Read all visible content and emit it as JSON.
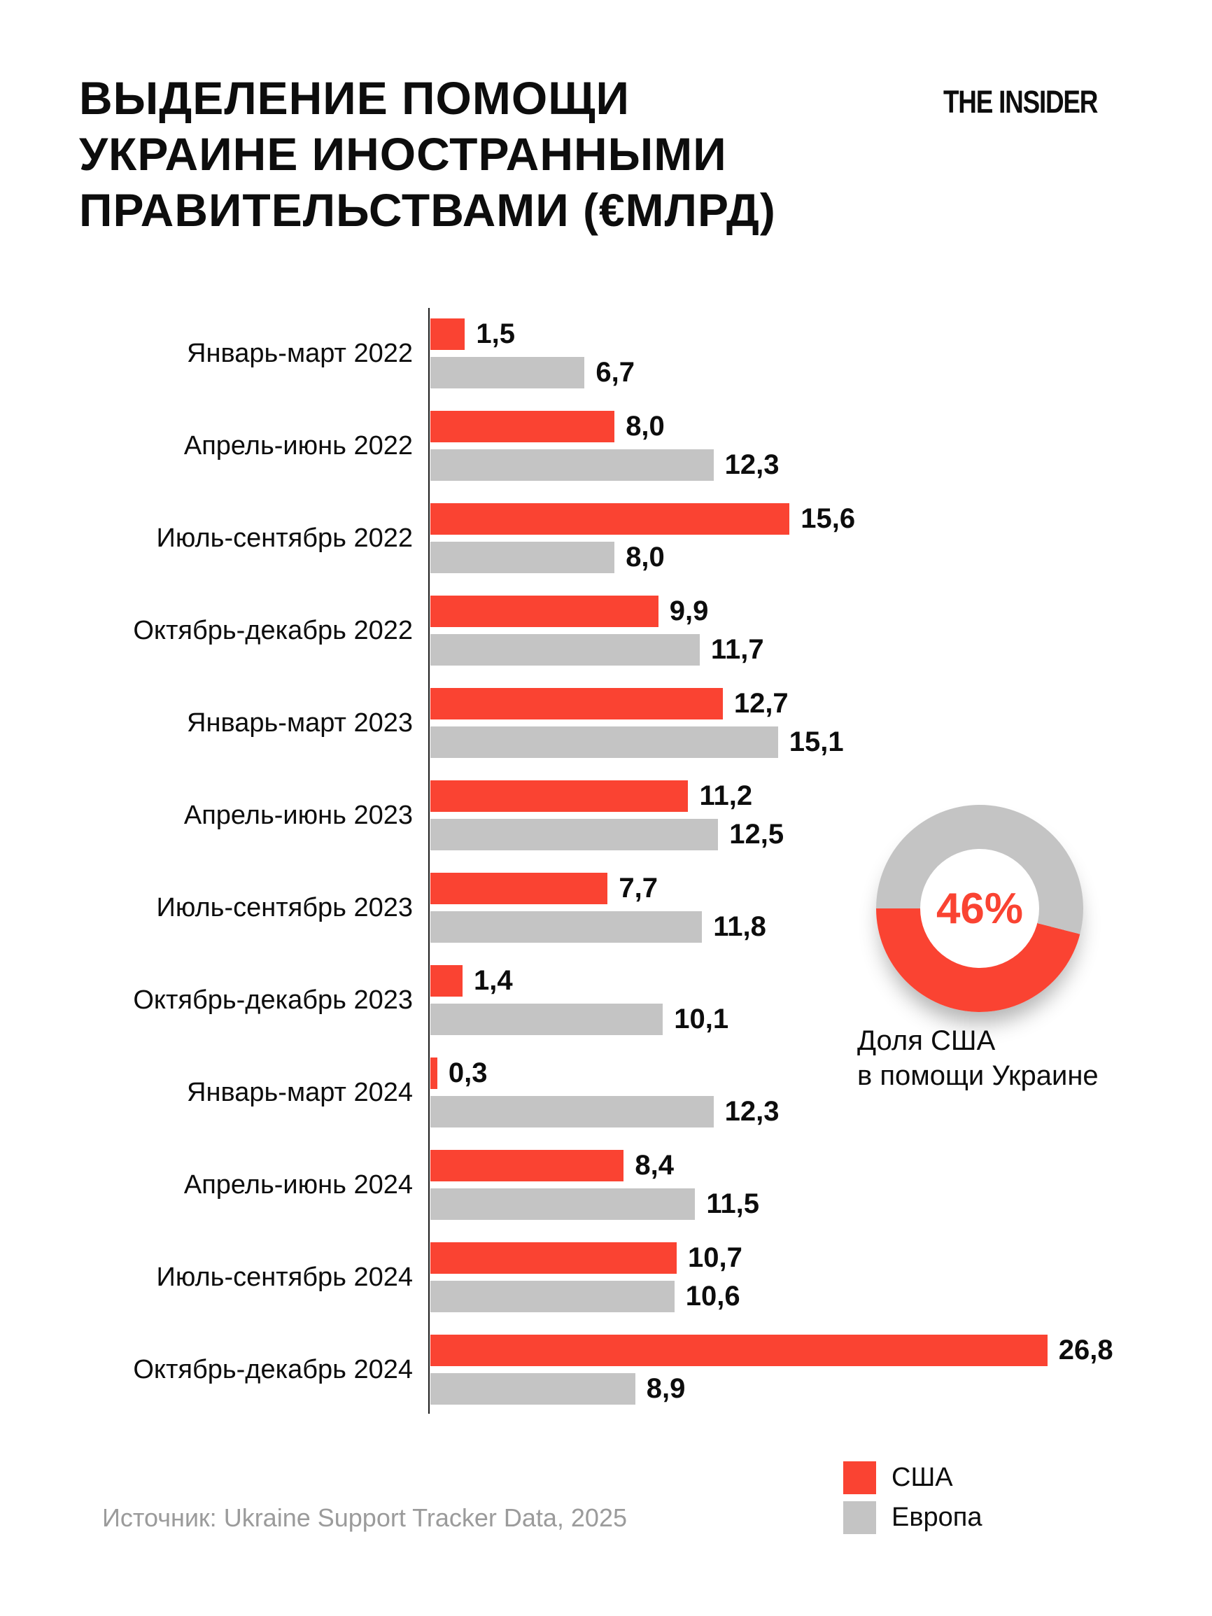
{
  "header": {
    "title_lines": [
      "ВЫДЕЛЕНИЕ ПОМОЩИ",
      "УКРАИНЕ ИНОСТРАННЫМИ",
      "ПРАВИТЕЛЬСТВАМИ (€МЛРД)"
    ],
    "logo": "THE INSIDER"
  },
  "chart_data": {
    "type": "bar",
    "orientation": "horizontal",
    "title": "ВЫДЕЛЕНИЕ ПОМОЩИ УКРАИНЕ ИНОСТРАННЫМИ ПРАВИТЕЛЬСТВАМИ (€МЛРД)",
    "categories": [
      "Январь-март 2022",
      "Апрель-июнь 2022",
      "Июль-сентябрь 2022",
      "Октябрь-декабрь 2022",
      "Январь-март 2023",
      "Апрель-июнь 2023",
      "Июль-сентябрь 2023",
      "Октябрь-декабрь 2023",
      "Январь-март 2024",
      "Апрель-июнь 2024",
      "Июль-сентябрь 2024",
      "Октябрь-декабрь 2024"
    ],
    "series": [
      {
        "name": "США",
        "color": "#FA4332",
        "values": [
          1.5,
          8.0,
          15.6,
          9.9,
          12.7,
          11.2,
          7.7,
          1.4,
          0.3,
          8.4,
          10.7,
          26.8
        ]
      },
      {
        "name": "Европа",
        "color": "#C4C4C4",
        "values": [
          6.7,
          12.3,
          8.0,
          11.7,
          15.1,
          12.5,
          11.8,
          10.1,
          12.3,
          11.5,
          10.6,
          8.9
        ]
      }
    ],
    "xlim": [
      0,
      27
    ],
    "grid": false,
    "value_label_decimal_separator": ","
  },
  "donut": {
    "percent": 46,
    "percent_label": "46%",
    "caption_lines": [
      "Доля США",
      "в помощи Украине"
    ],
    "us_color": "#FA4332",
    "europe_color": "#C4C4C4"
  },
  "legend": [
    {
      "label": "США",
      "color": "#FA4332"
    },
    {
      "label": "Европа",
      "color": "#C4C4C4"
    }
  ],
  "source": "Источник: Ukraine Support Tracker Data, 2025"
}
